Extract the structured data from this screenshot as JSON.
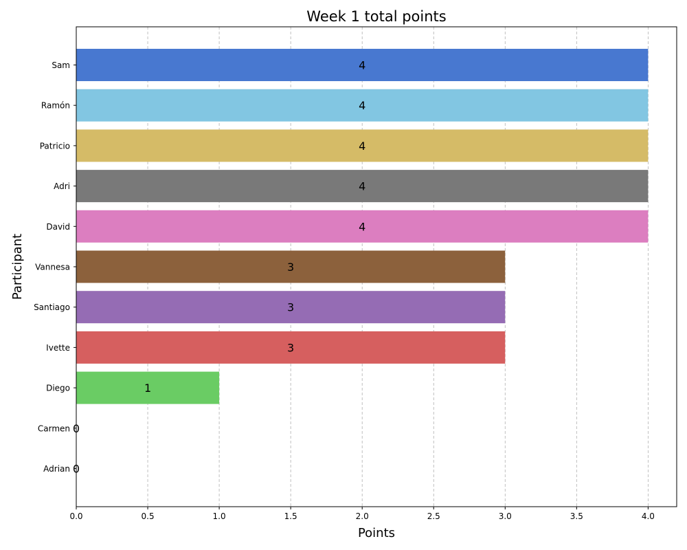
{
  "chart_data": {
    "type": "bar",
    "orientation": "horizontal",
    "title": "Week 1 total points",
    "xlabel": "Points",
    "ylabel": "Participant",
    "categories": [
      "Sam",
      "Ramón",
      "Patricio",
      "Adri",
      "David",
      "Vannesa",
      "Santiago",
      "Ivette",
      "Diego",
      "Carmen",
      "Adrian"
    ],
    "values": [
      4,
      4,
      4,
      4,
      4,
      3,
      3,
      3,
      1,
      0,
      0
    ],
    "colors": [
      "#4878d0",
      "#82c6e2",
      "#d5bb67",
      "#797979",
      "#dc7ec0",
      "#8c613c",
      "#956cb4",
      "#d65f5f",
      "#6acc64",
      "#ee854a",
      "#4878d0"
    ],
    "xlim": [
      0,
      4.2
    ],
    "xticks": [
      0,
      0.5,
      1,
      1.5,
      2,
      2.5,
      3,
      3.5,
      4
    ],
    "xtick_labels": [
      "0.0",
      "0.5",
      "1.0",
      "1.5",
      "2.0",
      "2.5",
      "3.0",
      "3.5",
      "4.0"
    ],
    "data_labels": [
      "4",
      "4",
      "4",
      "4",
      "4",
      "3",
      "3",
      "3",
      "1",
      "0",
      "0"
    ],
    "grid": "x-dashed",
    "legend": "none"
  }
}
